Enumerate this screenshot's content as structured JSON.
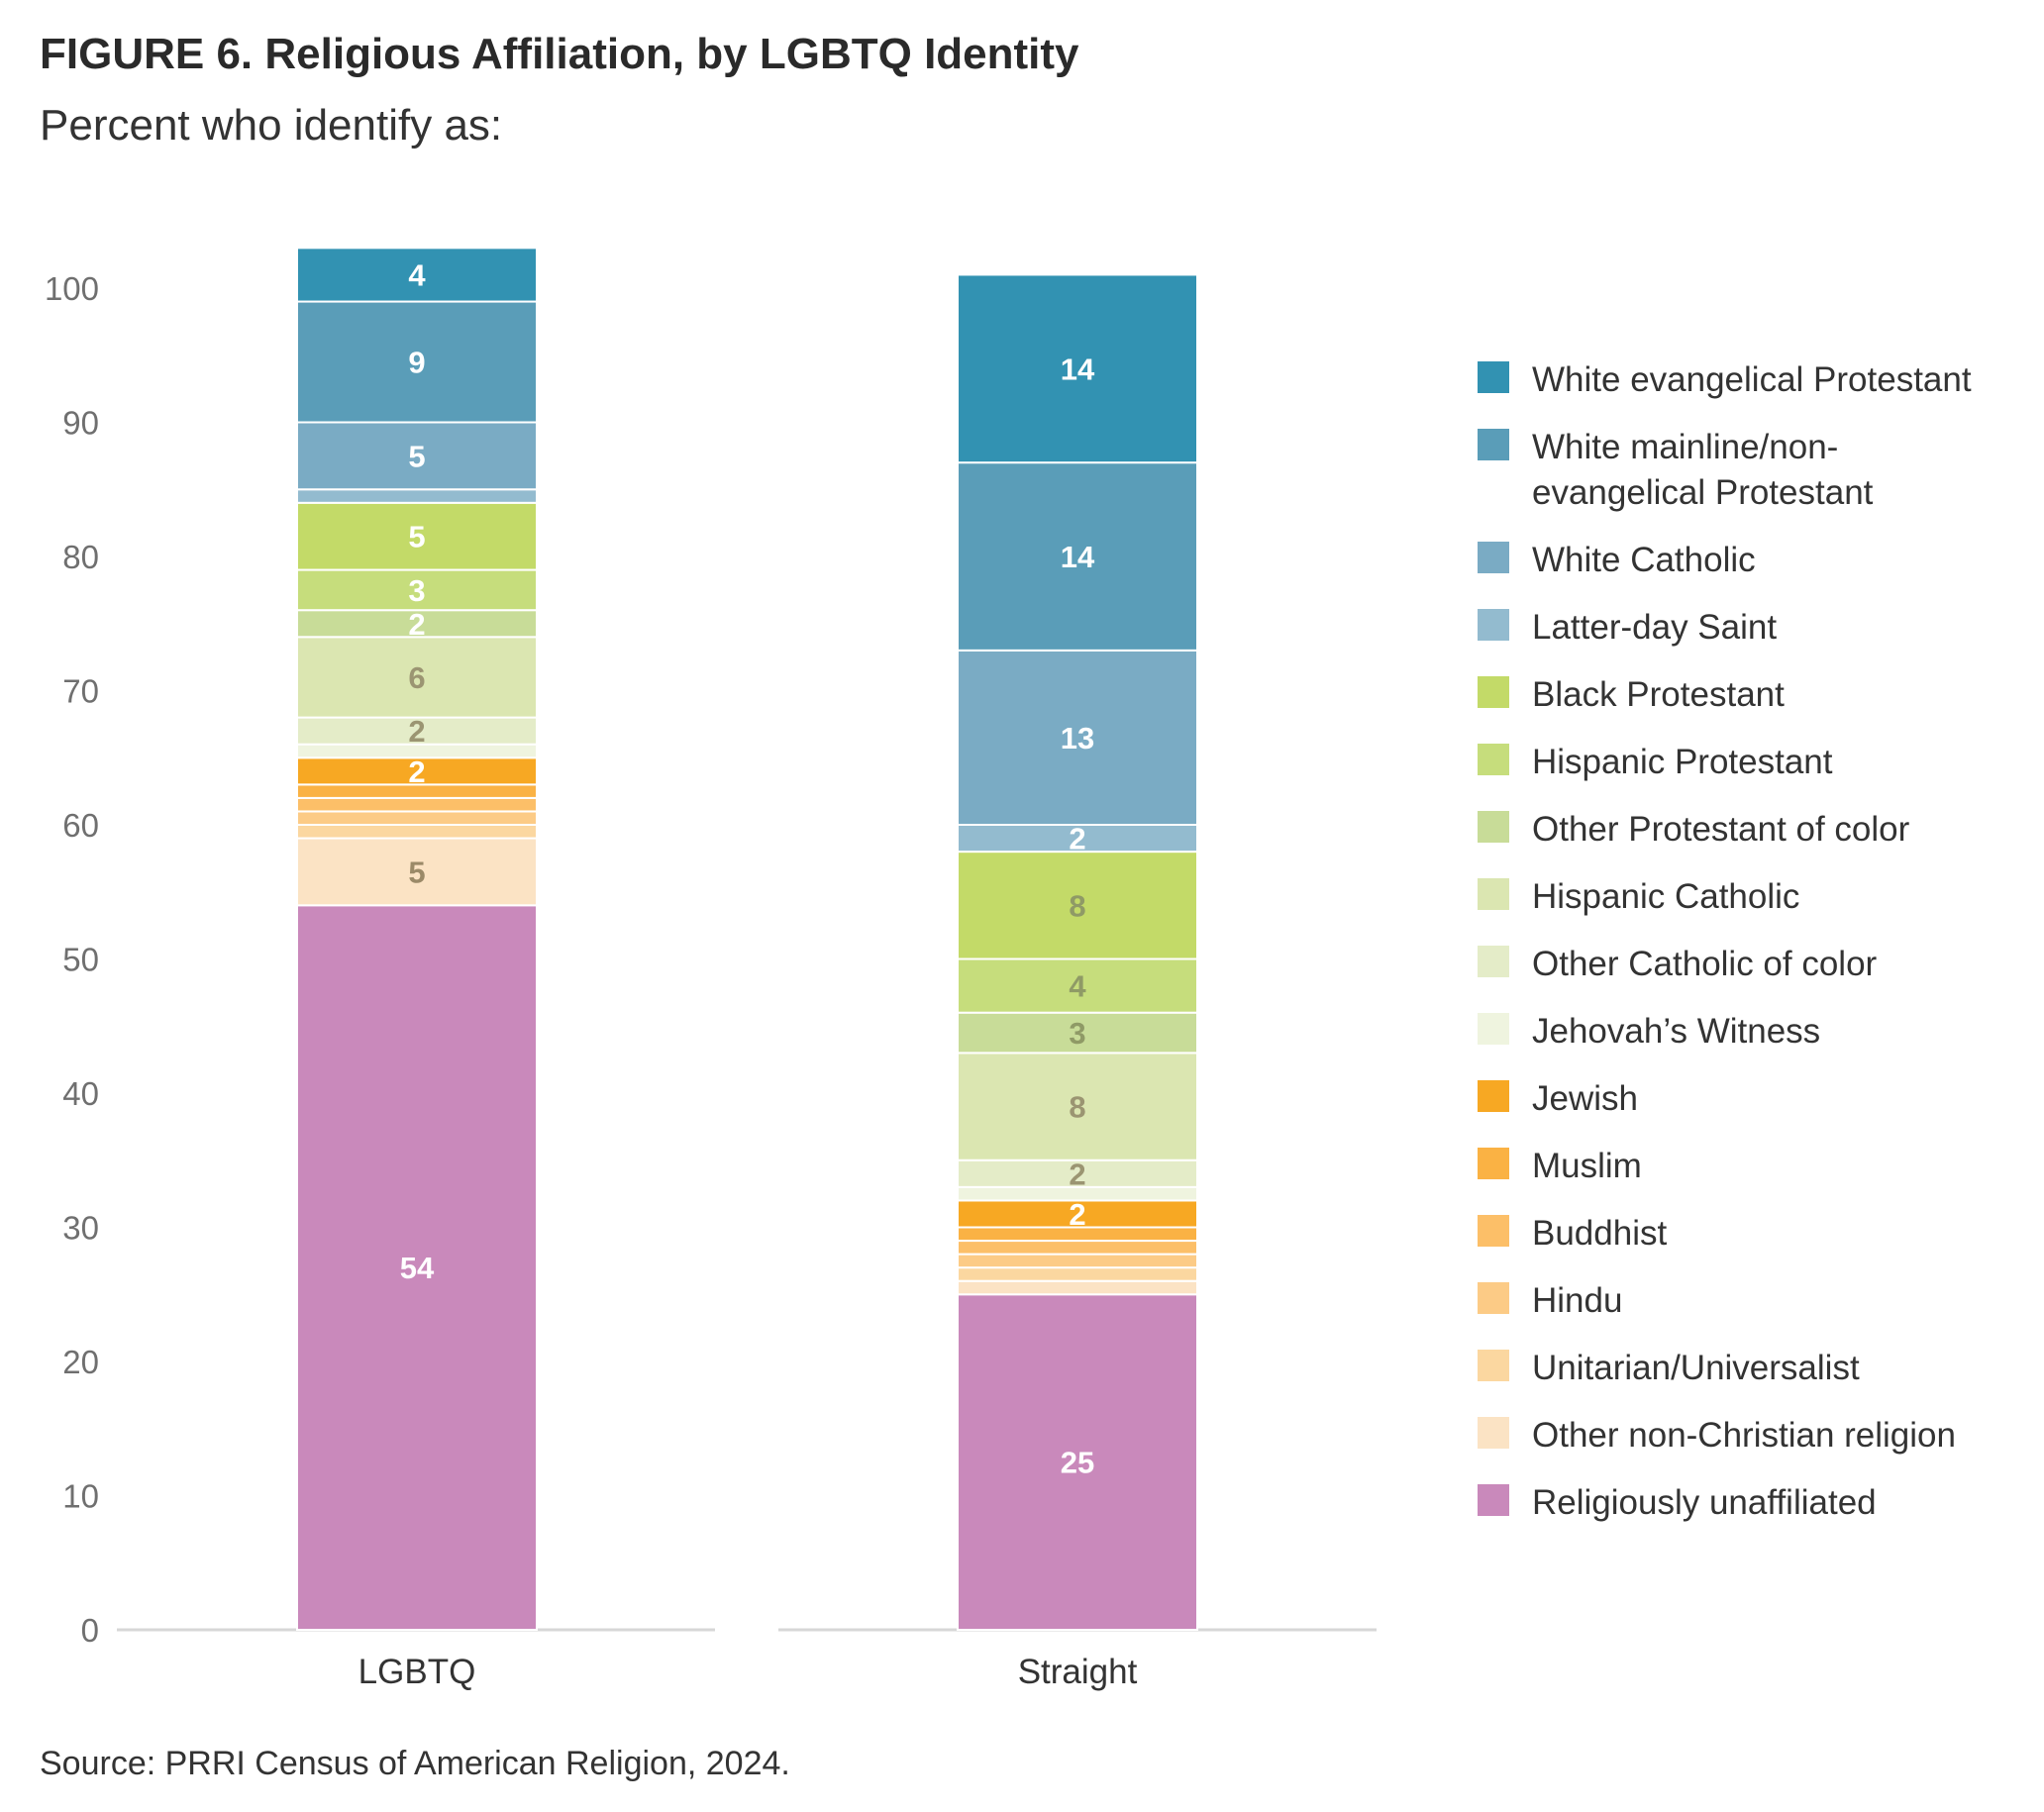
{
  "title": "FIGURE 6. Religious Affiliation, by LGBTQ Identity",
  "subtitle": "Percent who identify as:",
  "source": "Source: PRRI Census of American Religion, 2024.",
  "chart_data": {
    "type": "bar",
    "stacked": true,
    "categories": [
      "LGBTQ",
      "Straight"
    ],
    "ylim": [
      0,
      100
    ],
    "yticks": [
      0,
      10,
      20,
      30,
      40,
      50,
      60,
      70,
      80,
      90,
      100
    ],
    "legend_position": "right",
    "series": [
      {
        "name": "Religiously unaffiliated",
        "color": "#c989bb",
        "values": [
          54,
          25
        ],
        "labels": [
          "54",
          "25"
        ],
        "label_colors": [
          "#ffffff",
          "#ffffff"
        ]
      },
      {
        "name": "Other non-Christian religion",
        "color": "#fbe3c4",
        "values": [
          5,
          1
        ],
        "labels": [
          "5",
          ""
        ],
        "label_colors": [
          "#9b8a68",
          "#9b8a68"
        ]
      },
      {
        "name": "Unitarian/Universalist",
        "color": "#fbd7a0",
        "values": [
          1,
          1
        ],
        "labels": [
          "",
          ""
        ],
        "label_colors": [
          "#ffffff",
          "#ffffff"
        ]
      },
      {
        "name": "Hindu",
        "color": "#fccb86",
        "values": [
          1,
          1
        ],
        "labels": [
          "",
          ""
        ],
        "label_colors": [
          "#ffffff",
          "#ffffff"
        ]
      },
      {
        "name": "Buddhist",
        "color": "#fcbf68",
        "values": [
          1,
          1
        ],
        "labels": [
          "",
          ""
        ],
        "label_colors": [
          "#ffffff",
          "#ffffff"
        ]
      },
      {
        "name": "Muslim",
        "color": "#fab244",
        "values": [
          1,
          1
        ],
        "labels": [
          "",
          ""
        ],
        "label_colors": [
          "#ffffff",
          "#ffffff"
        ]
      },
      {
        "name": "Jewish",
        "color": "#f7a823",
        "values": [
          2,
          2
        ],
        "labels": [
          "2",
          "2"
        ],
        "label_colors": [
          "#ffffff",
          "#ffffff"
        ]
      },
      {
        "name": "Jehovah’s Witness",
        "color": "#eff4df",
        "values": [
          1,
          1
        ],
        "labels": [
          "",
          ""
        ],
        "label_colors": [
          "#ffffff",
          "#ffffff"
        ]
      },
      {
        "name": "Other Catholic of color",
        "color": "#e4ecc8",
        "values": [
          2,
          2
        ],
        "labels": [
          "2",
          "2"
        ],
        "label_colors": [
          "#9b9572",
          "#9b9572"
        ]
      },
      {
        "name": "Hispanic Catholic",
        "color": "#dbe6b1",
        "values": [
          6,
          8
        ],
        "labels": [
          "6",
          "8"
        ],
        "label_colors": [
          "#9b9572",
          "#9b9572"
        ]
      },
      {
        "name": "Other Protestant of color",
        "color": "#c8dc98",
        "values": [
          2,
          3
        ],
        "labels": [
          "2",
          "3"
        ],
        "label_colors": [
          "#ffffff",
          "#8f9a66"
        ]
      },
      {
        "name": "Hispanic Protestant",
        "color": "#c6dd7c",
        "values": [
          3,
          4
        ],
        "labels": [
          "3",
          "4"
        ],
        "label_colors": [
          "#ffffff",
          "#8f9a66"
        ]
      },
      {
        "name": "Black Protestant",
        "color": "#c3da68",
        "values": [
          5,
          8
        ],
        "labels": [
          "5",
          "8"
        ],
        "label_colors": [
          "#ffffff",
          "#8f9a66"
        ]
      },
      {
        "name": "Latter-day Saint",
        "color": "#93bbcf",
        "values": [
          1,
          2
        ],
        "labels": [
          "",
          "2"
        ],
        "label_colors": [
          "#ffffff",
          "#ffffff"
        ]
      },
      {
        "name": "White Catholic",
        "color": "#7aabc4",
        "values": [
          5,
          13
        ],
        "labels": [
          "5",
          "13"
        ],
        "label_colors": [
          "#ffffff",
          "#ffffff"
        ]
      },
      {
        "name": "White mainline/non-evangelical Protestant",
        "color": "#5a9db8",
        "values": [
          9,
          14
        ],
        "labels": [
          "9",
          "14"
        ],
        "label_colors": [
          "#ffffff",
          "#ffffff"
        ]
      },
      {
        "name": "White evangelical Protestant",
        "color": "#3292b2",
        "values": [
          4,
          14
        ],
        "labels": [
          "4",
          "14"
        ],
        "label_colors": [
          "#ffffff",
          "#ffffff"
        ]
      }
    ],
    "legend": [
      {
        "lines": [
          "White evangelical Protestant"
        ],
        "color": "#3292b2"
      },
      {
        "lines": [
          "White mainline/non-",
          "evangelical Protestant"
        ],
        "color": "#5a9db8"
      },
      {
        "lines": [
          "White Catholic"
        ],
        "color": "#7aabc4"
      },
      {
        "lines": [
          "Latter-day Saint"
        ],
        "color": "#93bbcf"
      },
      {
        "lines": [
          "Black Protestant"
        ],
        "color": "#c3da68"
      },
      {
        "lines": [
          "Hispanic Protestant"
        ],
        "color": "#c6dd7c"
      },
      {
        "lines": [
          "Other Protestant of color"
        ],
        "color": "#c8dc98"
      },
      {
        "lines": [
          "Hispanic Catholic"
        ],
        "color": "#dbe6b1"
      },
      {
        "lines": [
          "Other Catholic of color"
        ],
        "color": "#e4ecc8"
      },
      {
        "lines": [
          "Jehovah’s Witness"
        ],
        "color": "#eff4df"
      },
      {
        "lines": [
          "Jewish"
        ],
        "color": "#f7a823"
      },
      {
        "lines": [
          "Muslim"
        ],
        "color": "#fab244"
      },
      {
        "lines": [
          "Buddhist"
        ],
        "color": "#fcbf68"
      },
      {
        "lines": [
          "Hindu"
        ],
        "color": "#fccb86"
      },
      {
        "lines": [
          "Unitarian/Universalist"
        ],
        "color": "#fbd7a0"
      },
      {
        "lines": [
          "Other non-Christian religion"
        ],
        "color": "#fbe3c4"
      },
      {
        "lines": [
          "Religiously unaffiliated"
        ],
        "color": "#c989bb"
      }
    ]
  }
}
